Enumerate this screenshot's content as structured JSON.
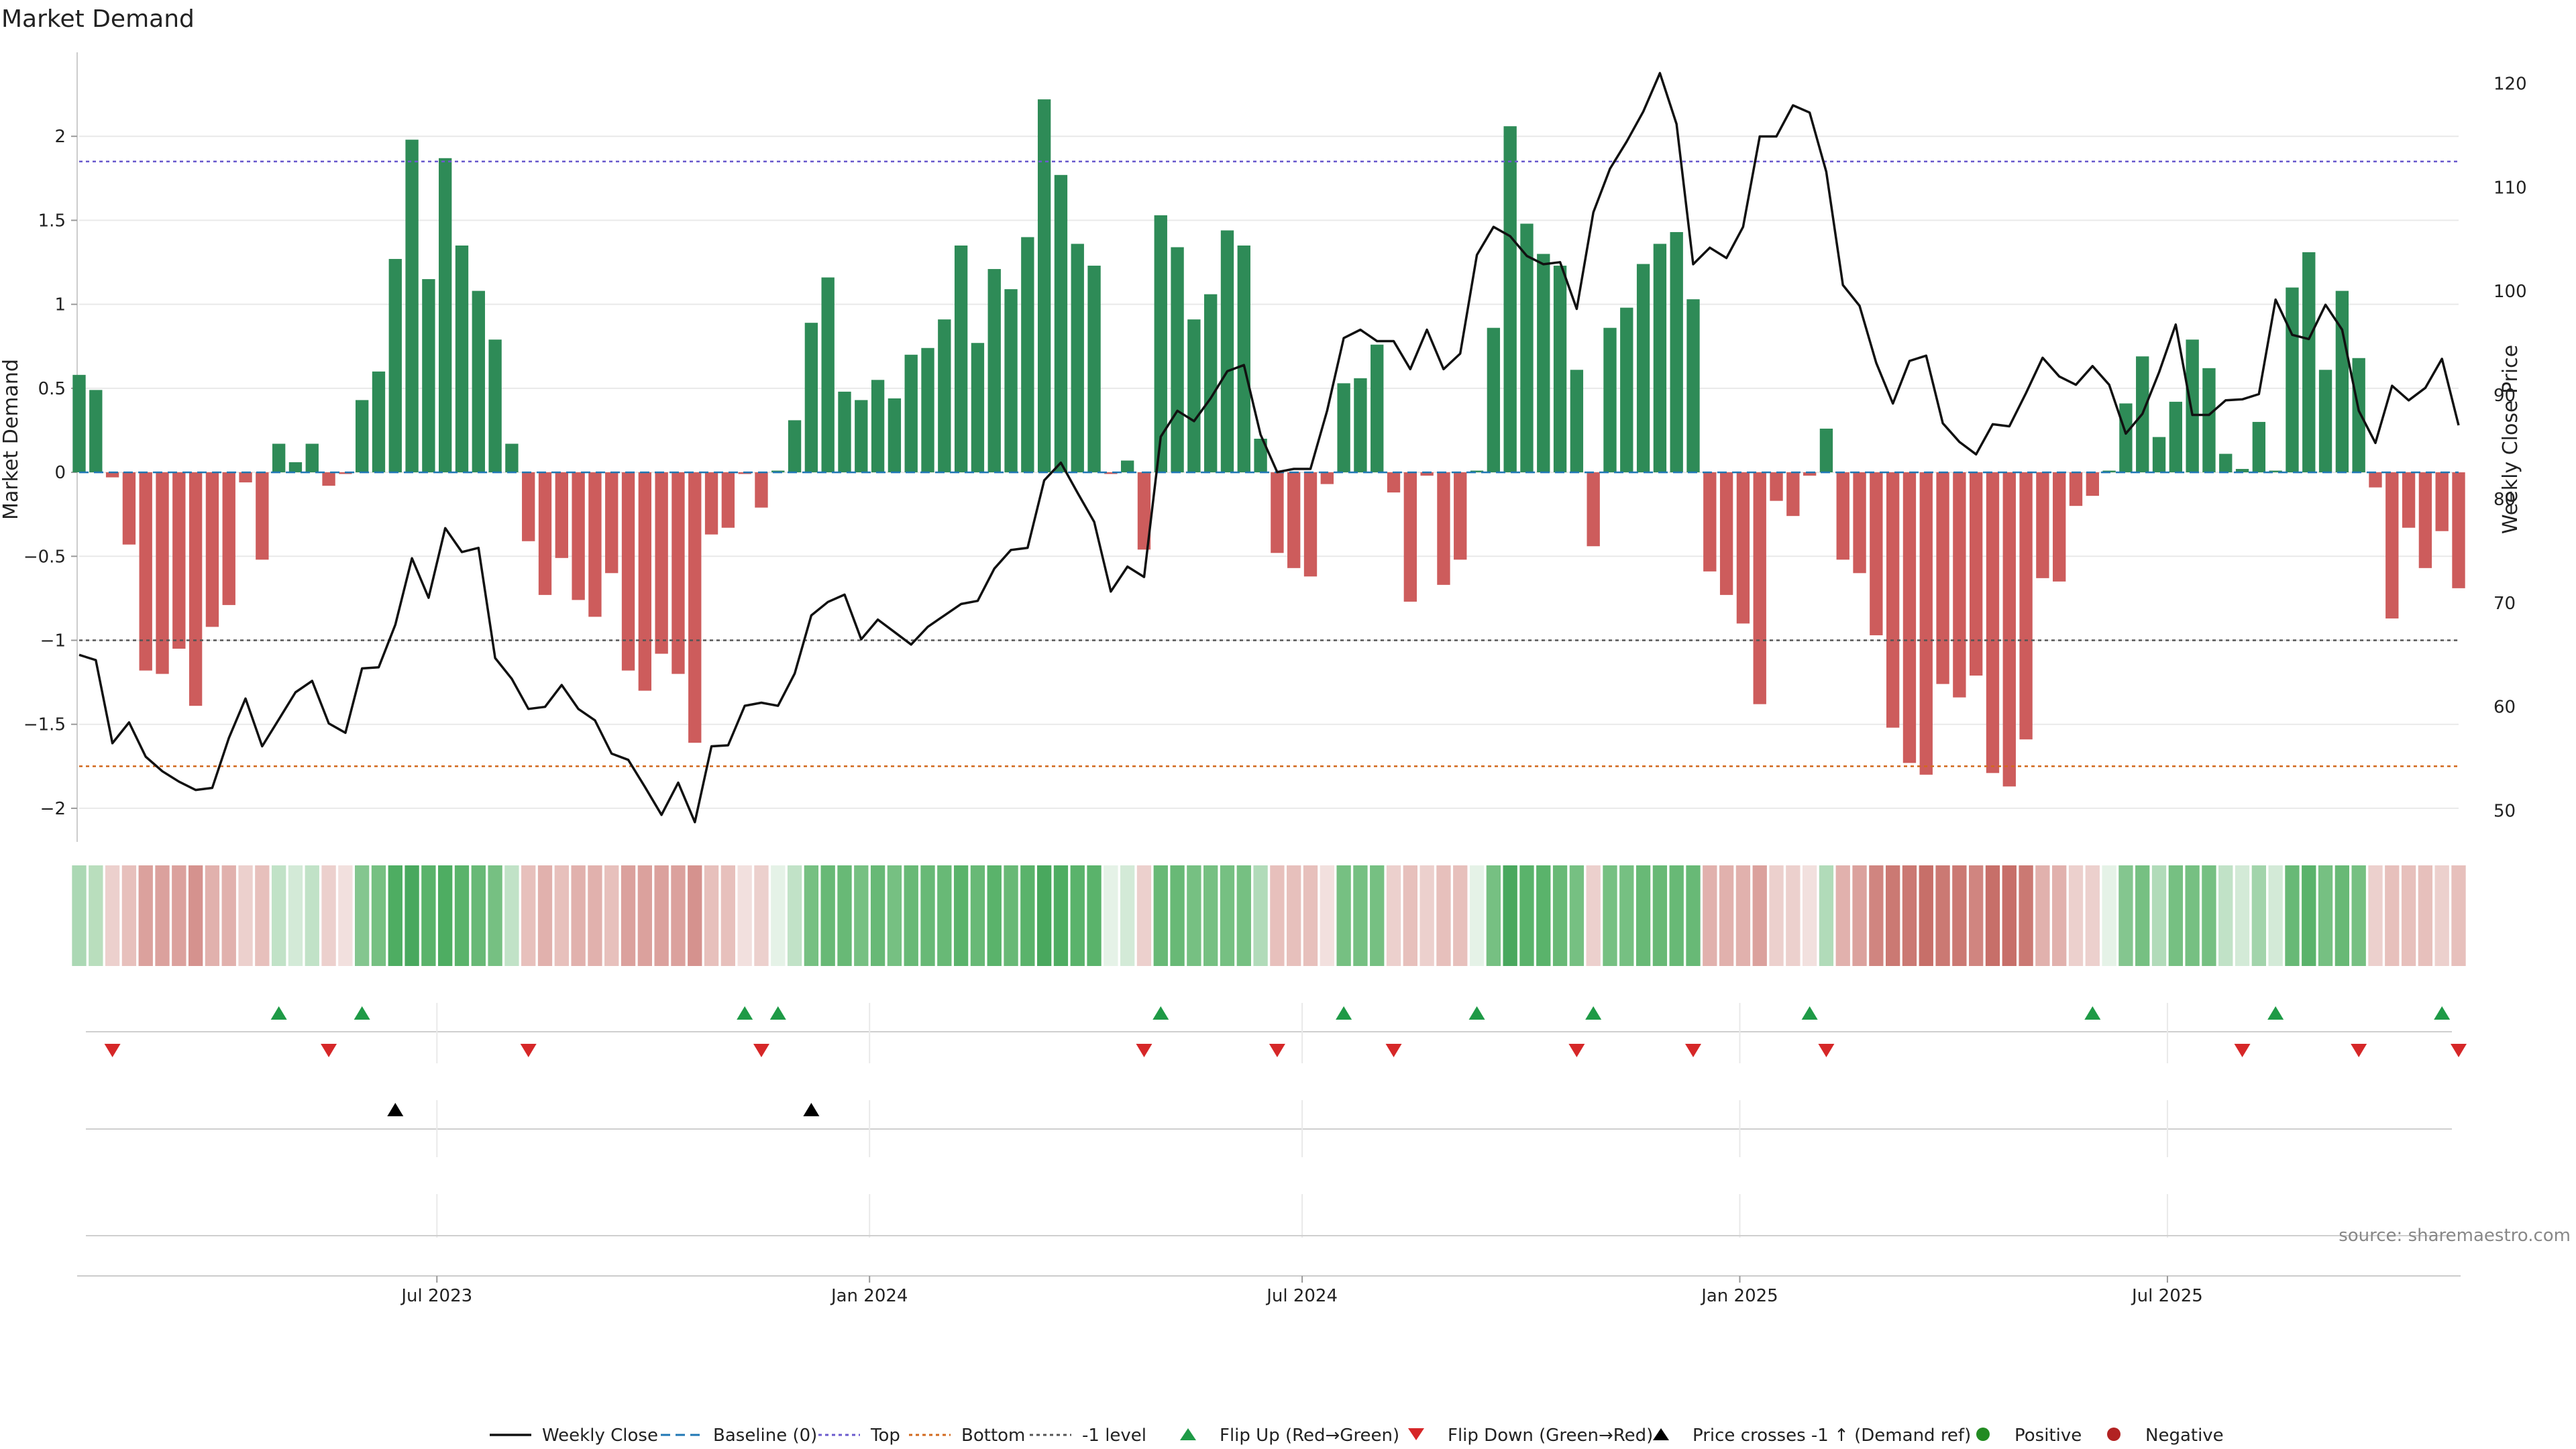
{
  "chart_data": {
    "type": "bar",
    "title": "Market Demand",
    "ylabel_left": "Market Demand",
    "ylabel_right": "Weekly Close Price",
    "source": "source: sharemaestro.com",
    "ylim_left": [
      -2.2,
      2.5
    ],
    "ylim_right": [
      47,
      123
    ],
    "yticks_left": [
      {
        "value": 2,
        "label": "2"
      },
      {
        "value": 1.5,
        "label": "1.5"
      },
      {
        "value": 1,
        "label": "1"
      },
      {
        "value": 0.5,
        "label": "0.5"
      },
      {
        "value": 0,
        "label": "0"
      },
      {
        "value": -0.5,
        "label": "−0.5"
      },
      {
        "value": -1,
        "label": "−1"
      },
      {
        "value": -1.5,
        "label": "−1.5"
      },
      {
        "value": -2,
        "label": "−2"
      }
    ],
    "yticks_right": [
      {
        "value": 120,
        "label": "120"
      },
      {
        "value": 110,
        "label": "110"
      },
      {
        "value": 100,
        "label": "100"
      },
      {
        "value": 90,
        "label": "90"
      },
      {
        "value": 80,
        "label": "80"
      },
      {
        "value": 70,
        "label": "70"
      },
      {
        "value": 60,
        "label": "60"
      },
      {
        "value": 50,
        "label": "50"
      }
    ],
    "x_range": [
      0,
      143
    ],
    "xticks": [
      {
        "index": 21.5,
        "label": "Jul 2023"
      },
      {
        "index": 47.5,
        "label": "Jan 2024"
      },
      {
        "index": 73.5,
        "label": "Jul 2024"
      },
      {
        "index": 99.8,
        "label": "Jan 2025"
      },
      {
        "index": 125.5,
        "label": "Jul 2025"
      }
    ],
    "reference_lines": {
      "top": 1.85,
      "bottom": -1.75,
      "minus_one": -1
    },
    "demand": [
      0.58,
      0.49,
      -0.03,
      -0.43,
      -1.18,
      -1.2,
      -1.05,
      -1.39,
      -0.92,
      -0.79,
      -0.06,
      -0.52,
      0.17,
      0.06,
      0.17,
      -0.08,
      -0.01,
      0.43,
      0.6,
      1.27,
      1.98,
      1.15,
      1.87,
      1.35,
      1.08,
      0.79,
      0.17,
      -0.41,
      -0.73,
      -0.51,
      -0.76,
      -0.86,
      -0.6,
      -1.18,
      -1.3,
      -1.08,
      -1.2,
      -1.61,
      -0.37,
      -0.33,
      -0.01,
      -0.21,
      0.01,
      0.31,
      0.89,
      1.16,
      0.48,
      0.43,
      0.55,
      0.44,
      0.7,
      0.74,
      0.91,
      1.35,
      0.77,
      1.21,
      1.09,
      1.4,
      2.22,
      1.77,
      1.36,
      1.23,
      -0.01,
      0.07,
      -0.46,
      1.53,
      1.34,
      0.91,
      1.06,
      1.44,
      1.35,
      0.2,
      -0.48,
      -0.57,
      -0.62,
      -0.07,
      0.53,
      0.56,
      0.76,
      -0.12,
      -0.77,
      -0.02,
      -0.67,
      -0.52,
      0.01,
      0.86,
      2.06,
      1.48,
      1.3,
      1.23,
      0.61,
      -0.44,
      0.86,
      0.98,
      1.24,
      1.36,
      1.43,
      1.03,
      -0.59,
      -0.73,
      -0.9,
      -1.38,
      -0.17,
      -0.26,
      -0.02,
      0.26,
      -0.52,
      -0.6,
      -0.97,
      -1.52,
      -1.73,
      -1.8,
      -1.26,
      -1.34,
      -1.21,
      -1.79,
      -1.87,
      -1.59,
      -0.63,
      -0.65,
      -0.2,
      -0.14,
      0.01,
      0.41,
      0.69,
      0.21,
      0.42,
      0.79,
      0.62,
      0.11,
      0.02,
      0.3,
      0.01,
      1.1,
      1.31,
      0.61,
      1.08,
      0.68,
      -0.09,
      -0.87,
      -0.33,
      -0.57,
      -0.35,
      -0.69
    ],
    "price": [
      65,
      64.5,
      56.5,
      58.5,
      55.2,
      53.8,
      52.8,
      52,
      52.2,
      57,
      60.8,
      56.2,
      58.8,
      61.4,
      62.5,
      58.4,
      57.5,
      63.7,
      63.8,
      67.9,
      74.3,
      70.5,
      77.2,
      74.9,
      75.3,
      64.7,
      62.7,
      59.8,
      60,
      62.1,
      59.8,
      58.7,
      55.5,
      54.9,
      52.3,
      49.6,
      52.7,
      48.9,
      56.2,
      56.3,
      60.1,
      60.4,
      60.1,
      63.2,
      68.8,
      70.1,
      70.8,
      66.5,
      68.4,
      67.2,
      66,
      67.7,
      68.8,
      69.9,
      70.2,
      73.3,
      75.1,
      75.3,
      81.8,
      83.5,
      80.6,
      77.8,
      71.1,
      73.5,
      72.5,
      86,
      88.5,
      87.5,
      89.7,
      92.3,
      92.9,
      86.2,
      82.6,
      82.9,
      82.9,
      88.5,
      95.5,
      96.3,
      95.2,
      95.2,
      92.5,
      96.3,
      92.5,
      94,
      103.5,
      106.2,
      105.3,
      103.4,
      102.6,
      102.8,
      98.3,
      107.6,
      111.8,
      114.4,
      117.3,
      121,
      116.1,
      102.6,
      104.2,
      103.2,
      106.2,
      114.9,
      114.9,
      117.9,
      117.2,
      111.5,
      100.6,
      98.6,
      93.1,
      89.2,
      93.3,
      93.8,
      87.3,
      85.5,
      84.3,
      87.2,
      87,
      90.2,
      93.6,
      91.8,
      91,
      92.8,
      91,
      86.3,
      88.2,
      92.2,
      96.8,
      88.1,
      88.1,
      89.5,
      89.6,
      90.1,
      99.2,
      95.8,
      95.4,
      98.7,
      96.3,
      88.5,
      85.4,
      90.9,
      89.5,
      90.7,
      93.5,
      87.1
    ],
    "strip": [
      [
        "#abd8b4",
        "#b9debd"
      ],
      [
        "#f3f8f4",
        "#e5f2e7",
        "#d3ead7",
        "#c1e2c7",
        "#b1dbb9",
        "#a2d4ab",
        "#93cd9d",
        "#84c68f",
        "#76c082",
        "#68b976",
        "#5ab36b",
        "#4ead62",
        "#49a85e"
      ],
      [
        "#faf2f1",
        "#f2e0de",
        "#ecd0cd",
        "#e7c0bc",
        "#e1b1ad",
        "#dba19d",
        "#d5928e",
        "#d08580",
        "#cb7973",
        "#c76f69"
      ]
    ],
    "strip_levels": [
      11,
      10,
      -2,
      -3,
      -5,
      -5,
      -5,
      -6,
      -4,
      -4,
      -2,
      -3,
      3,
      2,
      3,
      -2,
      -1,
      7,
      8,
      11,
      12,
      10,
      11,
      10,
      9,
      8,
      3,
      -3,
      -4,
      -3,
      -4,
      -4,
      -3,
      -5,
      -5,
      -5,
      -5,
      -6,
      -3,
      -3,
      -1,
      -2,
      1,
      3,
      8,
      9,
      9,
      8,
      9,
      8,
      9,
      9,
      9,
      10,
      9,
      10,
      9,
      10,
      12,
      11,
      10,
      10,
      1,
      2,
      -2,
      9,
      9,
      8,
      8,
      8,
      8,
      4,
      -3,
      -3,
      -3,
      -1,
      8,
      8,
      8,
      -2,
      -3,
      -2,
      -3,
      -3,
      1,
      8,
      12,
      10,
      10,
      9,
      8,
      -2,
      8,
      8,
      9,
      9,
      9,
      9,
      -4,
      -4,
      -4,
      -5,
      -2,
      -2,
      -1,
      4,
      -4,
      -5,
      -7,
      -8,
      -8,
      -9,
      -8,
      -8,
      -7,
      -9,
      -10,
      -8,
      -4,
      -4,
      -2,
      -2,
      1,
      7,
      8,
      4,
      8,
      8,
      8,
      3,
      2,
      5,
      2,
      9,
      10,
      8,
      9,
      8,
      -2,
      -3,
      -3,
      -3,
      -2,
      -3
    ],
    "flip_up_index": [
      12,
      17,
      40,
      42,
      65,
      76,
      84,
      91,
      104,
      121,
      132,
      142
    ],
    "flip_down_index": [
      2,
      15,
      27,
      41,
      64,
      72,
      79,
      90,
      97,
      105,
      130,
      137,
      143
    ],
    "price_cross_up_index": [
      19,
      44
    ]
  },
  "legend": [
    {
      "key": "close",
      "label": "Weekly Close"
    },
    {
      "key": "baseline",
      "label": "Baseline (0)"
    },
    {
      "key": "top",
      "label": "Top"
    },
    {
      "key": "bottom",
      "label": "Bottom"
    },
    {
      "key": "minus_one",
      "label": "-1 level"
    },
    {
      "key": "flip_up",
      "label": "Flip Up (Red→Green)"
    },
    {
      "key": "flip_down",
      "label": "Flip Down (Green→Red)"
    },
    {
      "key": "cross",
      "label": "Price crosses -1 ↑ (Demand ref)"
    },
    {
      "key": "positive",
      "label": "Positive"
    },
    {
      "key": "negative",
      "label": "Negative"
    }
  ],
  "colors": {
    "positive_bar": "#2e8b57",
    "negative_bar": "#cd5c5c",
    "close_line": "#111111",
    "baseline": "#1f77b4",
    "top": "#6a5acd",
    "bottom": "#d2691e",
    "minus_one": "#555555",
    "flip_up": "#1e9a46",
    "flip_down": "#d62728",
    "cross": "#000000",
    "positive_dot": "#228b22",
    "negative_dot": "#b22222",
    "grid": "#e9e9e9"
  }
}
